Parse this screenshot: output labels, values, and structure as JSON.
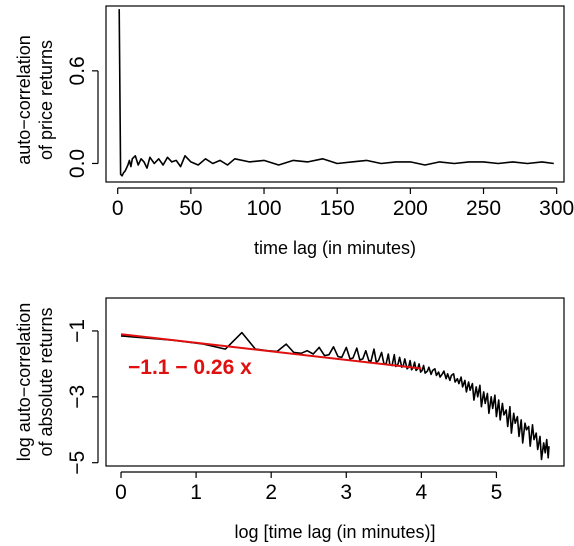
{
  "chart_data": [
    {
      "type": "line",
      "xlabel": "time lag (in minutes)",
      "ylabel": [
        "auto−correlation",
        "of price returns"
      ],
      "xlim": [
        -8,
        305
      ],
      "ylim": [
        -0.12,
        1.02
      ],
      "xticks": [
        0,
        50,
        100,
        150,
        200,
        250,
        300
      ],
      "yticks": [
        0.0,
        0.6
      ],
      "ytick_labels": [
        "0.0",
        "0.6"
      ],
      "grid": false,
      "series": [
        {
          "color": "#000000",
          "x": [
            1,
            2,
            3,
            4,
            5,
            6,
            7,
            8,
            9,
            10,
            12,
            14,
            16,
            18,
            20,
            22,
            25,
            28,
            31,
            34,
            37,
            40,
            43,
            46,
            50,
            55,
            60,
            65,
            70,
            75,
            80,
            90,
            100,
            110,
            120,
            130,
            140,
            150,
            160,
            170,
            180,
            190,
            200,
            210,
            220,
            230,
            240,
            250,
            260,
            270,
            280,
            290,
            298
          ],
          "y": [
            1.0,
            -0.07,
            -0.08,
            -0.06,
            -0.05,
            -0.03,
            -0.01,
            0.02,
            -0.02,
            0.03,
            0.05,
            -0.01,
            0.03,
            0.01,
            -0.03,
            0.04,
            0.0,
            0.03,
            -0.01,
            0.04,
            0.01,
            0.02,
            -0.02,
            0.05,
            0.01,
            -0.01,
            0.03,
            0.0,
            0.02,
            -0.01,
            0.03,
            0.01,
            0.02,
            -0.01,
            0.02,
            0.01,
            0.03,
            0.0,
            0.01,
            0.02,
            0.0,
            0.01,
            0.01,
            -0.01,
            0.01,
            0.0,
            0.01,
            0.01,
            0.0,
            0.01,
            0.0,
            0.01,
            0.0
          ]
        }
      ]
    },
    {
      "type": "line",
      "xlabel": "log [time lag (in minutes)]",
      "ylabel": [
        "log auto−correlation",
        "of absolute returns"
      ],
      "xlim": [
        -0.2,
        5.9
      ],
      "ylim": [
        -5.1,
        0.0
      ],
      "xticks": [
        0,
        1,
        2,
        3,
        4,
        5
      ],
      "yticks": [
        -1,
        -3,
        -5
      ],
      "ytick_labels": [
        "−1",
        "−3",
        "−5"
      ],
      "grid": false,
      "annotations": [
        {
          "text": "−1.1 − 0.26 x",
          "x": 0.05,
          "y": -2.05,
          "color": "#e01010"
        }
      ],
      "fit_line": {
        "intercept": -1.1,
        "slope": -0.26,
        "x": [
          0,
          4
        ],
        "color": "#e01010"
      },
      "series": [
        {
          "color": "#000000",
          "x": [
            0.0,
            0.69,
            1.1,
            1.39,
            1.61,
            1.79,
            1.95,
            2.08,
            2.2,
            2.3,
            2.4,
            2.48,
            2.56,
            2.64,
            2.71,
            2.77,
            2.83,
            2.89,
            2.94,
            3.0,
            3.05,
            3.09,
            3.14,
            3.18,
            3.22,
            3.26,
            3.3,
            3.33,
            3.37,
            3.4,
            3.43,
            3.47,
            3.5,
            3.53,
            3.56,
            3.58,
            3.61,
            3.64,
            3.66,
            3.69,
            3.71,
            3.74,
            3.76,
            3.78,
            3.81,
            3.83,
            3.85,
            3.87,
            3.89,
            3.91,
            3.93,
            3.95,
            3.97,
            3.99,
            4.01,
            4.03,
            4.05,
            4.08,
            4.1,
            4.13,
            4.15,
            4.18,
            4.2,
            4.23,
            4.25,
            4.28,
            4.3,
            4.33,
            4.35,
            4.38,
            4.4,
            4.43,
            4.45,
            4.48,
            4.5,
            4.53,
            4.55,
            4.58,
            4.6,
            4.63,
            4.65,
            4.68,
            4.7,
            4.73,
            4.75,
            4.78,
            4.8,
            4.83,
            4.85,
            4.88,
            4.9,
            4.93,
            4.95,
            4.98,
            5.0,
            5.03,
            5.05,
            5.08,
            5.1,
            5.13,
            5.15,
            5.18,
            5.2,
            5.23,
            5.25,
            5.28,
            5.3,
            5.33,
            5.35,
            5.38,
            5.4,
            5.43,
            5.45,
            5.48,
            5.5,
            5.53,
            5.55,
            5.58,
            5.6,
            5.63,
            5.65,
            5.67,
            5.69,
            5.7
          ],
          "y": [
            -1.15,
            -1.28,
            -1.4,
            -1.55,
            -1.05,
            -1.55,
            -1.6,
            -1.62,
            -1.4,
            -1.65,
            -1.68,
            -1.6,
            -1.7,
            -1.5,
            -1.75,
            -1.72,
            -1.48,
            -1.78,
            -1.8,
            -1.5,
            -1.85,
            -1.82,
            -1.52,
            -1.88,
            -1.85,
            -1.6,
            -1.9,
            -1.92,
            -1.55,
            -1.95,
            -1.9,
            -1.65,
            -1.98,
            -2.0,
            -1.7,
            -2.02,
            -2.05,
            -1.72,
            -2.08,
            -2.0,
            -1.8,
            -2.1,
            -2.05,
            -1.85,
            -2.15,
            -2.1,
            -1.9,
            -2.18,
            -2.12,
            -1.95,
            -2.2,
            -2.15,
            -2.0,
            -2.25,
            -2.2,
            -2.05,
            -2.28,
            -2.22,
            -2.1,
            -2.32,
            -2.2,
            -2.15,
            -2.35,
            -2.25,
            -2.4,
            -2.3,
            -2.22,
            -2.45,
            -2.3,
            -2.5,
            -2.35,
            -2.3,
            -2.55,
            -2.45,
            -2.6,
            -2.4,
            -2.7,
            -2.5,
            -2.85,
            -2.55,
            -2.8,
            -2.6,
            -3.1,
            -2.7,
            -3.0,
            -2.65,
            -3.3,
            -2.85,
            -3.2,
            -2.9,
            -3.5,
            -3.0,
            -3.35,
            -2.95,
            -3.6,
            -3.1,
            -3.7,
            -3.2,
            -3.55,
            -3.4,
            -3.9,
            -3.3,
            -4.1,
            -3.5,
            -3.8,
            -3.6,
            -4.2,
            -3.7,
            -4.4,
            -3.8,
            -4.0,
            -3.9,
            -4.5,
            -3.85,
            -4.3,
            -4.1,
            -4.6,
            -4.2,
            -4.9,
            -4.4,
            -4.7,
            -4.3,
            -4.85,
            -4.5
          ]
        }
      ]
    }
  ]
}
